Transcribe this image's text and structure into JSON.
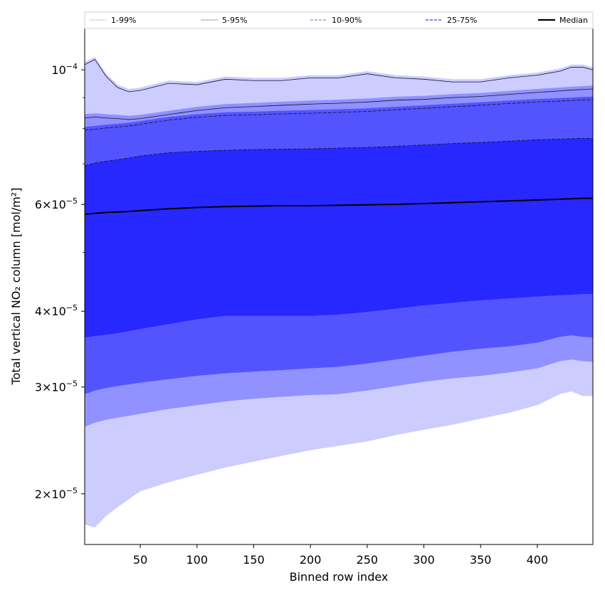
{
  "chart_data": {
    "type": "area",
    "xlabel": "Binned row index",
    "ylabel": "Total vertical NO₂ column [mol/m²]",
    "xlim": [
      1,
      449
    ],
    "ylim": [
      1.65e-05,
      0.000117
    ],
    "yscale": "log",
    "grid": false,
    "legend_placement": "top",
    "x_ticks": [
      {
        "value": 50,
        "label": "50"
      },
      {
        "value": 100,
        "label": "100"
      },
      {
        "value": 150,
        "label": "150"
      },
      {
        "value": 200,
        "label": "200"
      },
      {
        "value": 250,
        "label": "250"
      },
      {
        "value": 300,
        "label": "300"
      },
      {
        "value": 350,
        "label": "350"
      },
      {
        "value": 400,
        "label": "400"
      }
    ],
    "y_ticks": [
      {
        "value": 2e-05,
        "mantissa": "2×10",
        "exponent": "−5"
      },
      {
        "value": 3e-05,
        "mantissa": "3×10",
        "exponent": "−5"
      },
      {
        "value": 4e-05,
        "mantissa": "4×10",
        "exponent": "−5"
      },
      {
        "value": 6e-05,
        "mantissa": "6×10",
        "exponent": "−5"
      },
      {
        "value": 0.0001,
        "mantissa": "10",
        "exponent": "−4"
      }
    ],
    "y_minor_ticks": [
      5e-05,
      7e-05,
      8e-05,
      9e-05
    ],
    "x": [
      1,
      10,
      20,
      30,
      40,
      50,
      75,
      100,
      125,
      150,
      175,
      200,
      225,
      250,
      275,
      300,
      325,
      350,
      375,
      400,
      420,
      430,
      440,
      449
    ],
    "bands": [
      {
        "name": "1-99%",
        "color": "#ccccff",
        "line_color": "#bbbbbb",
        "line_style": "solid",
        "lower": [
          1.78e-05,
          1.76e-05,
          1.84e-05,
          1.9e-05,
          1.96e-05,
          2.02e-05,
          2.09e-05,
          2.15e-05,
          2.21e-05,
          2.26e-05,
          2.31e-05,
          2.36e-05,
          2.4e-05,
          2.44e-05,
          2.5e-05,
          2.55e-05,
          2.6e-05,
          2.66e-05,
          2.72e-05,
          2.8e-05,
          2.92e-05,
          2.95e-05,
          2.9e-05,
          2.9e-05
        ],
        "upper": [
          0.000103,
          0.000105,
          9.85e-05,
          9.45e-05,
          9.3e-05,
          9.35e-05,
          9.6e-05,
          9.55e-05,
          9.75e-05,
          9.7e-05,
          9.7e-05,
          9.8e-05,
          9.8e-05,
          9.95e-05,
          9.8e-05,
          9.75e-05,
          9.65e-05,
          9.65e-05,
          9.8e-05,
          9.9e-05,
          0.0001005,
          0.000102,
          0.000102,
          0.000101
        ]
      },
      {
        "name": "5-95%",
        "color": "#9191ff",
        "line_color": "#8888cc",
        "line_style": "solid",
        "lower": [
          2.58e-05,
          2.62e-05,
          2.65e-05,
          2.67e-05,
          2.69e-05,
          2.71e-05,
          2.76e-05,
          2.8e-05,
          2.84e-05,
          2.87e-05,
          2.89e-05,
          2.91e-05,
          2.92e-05,
          2.96e-05,
          3.01e-05,
          3.06e-05,
          3.1e-05,
          3.13e-05,
          3.17e-05,
          3.22e-05,
          3.31e-05,
          3.33e-05,
          3.31e-05,
          3.3e-05
        ],
        "upper": [
          8.45e-05,
          8.48e-05,
          8.45e-05,
          8.43e-05,
          8.4e-05,
          8.43e-05,
          8.56e-05,
          8.69e-05,
          8.78e-05,
          8.82e-05,
          8.86e-05,
          8.9e-05,
          8.93e-05,
          8.97e-05,
          9.03e-05,
          9.06e-05,
          9.12e-05,
          9.16e-05,
          9.23e-05,
          9.3e-05,
          9.35e-05,
          9.38e-05,
          9.4e-05,
          9.42e-05
        ]
      },
      {
        "name": "10-90%",
        "color": "#5454ff",
        "line_color": "#6a6ae0",
        "line_style": "dashed",
        "lower": [
          2.92e-05,
          2.96e-05,
          2.99e-05,
          3.01e-05,
          3.03e-05,
          3.05e-05,
          3.09e-05,
          3.13e-05,
          3.16e-05,
          3.18e-05,
          3.2e-05,
          3.22e-05,
          3.24e-05,
          3.28e-05,
          3.33e-05,
          3.38e-05,
          3.43e-05,
          3.47e-05,
          3.5e-05,
          3.55e-05,
          3.63e-05,
          3.65e-05,
          3.63e-05,
          3.62e-05
        ],
        "upper": [
          8.05e-05,
          8.08e-05,
          8.12e-05,
          8.15e-05,
          8.18e-05,
          8.23e-05,
          8.36e-05,
          8.45e-05,
          8.51e-05,
          8.53e-05,
          8.56e-05,
          8.58e-05,
          8.61e-05,
          8.64e-05,
          8.69e-05,
          8.74e-05,
          8.79e-05,
          8.84e-05,
          8.9e-05,
          8.95e-05,
          8.98e-05,
          9e-05,
          9.02e-05,
          9.03e-05
        ]
      },
      {
        "name": "25-75%",
        "color": "#2727ff",
        "line_color": "#5a5ae8",
        "line_style": "dashed",
        "lower": [
          3.62e-05,
          3.64e-05,
          3.66e-05,
          3.68e-05,
          3.71e-05,
          3.74e-05,
          3.81e-05,
          3.88e-05,
          3.93e-05,
          3.93e-05,
          3.93e-05,
          3.93e-05,
          3.95e-05,
          3.99e-05,
          4.04e-05,
          4.09e-05,
          4.13e-05,
          4.17e-05,
          4.2e-05,
          4.23e-05,
          4.25e-05,
          4.26e-05,
          4.27e-05,
          4.27e-05
        ]
      }
    ],
    "band_lines": [
      {
        "values": [
          0.000102,
          0.000104,
          9.75e-05,
          9.35e-05,
          9.2e-05,
          9.25e-05,
          9.5e-05,
          9.45e-05,
          9.65e-05,
          9.6e-05,
          9.6e-05,
          9.7e-05,
          9.7e-05,
          9.85e-05,
          9.7e-05,
          9.65e-05,
          9.55e-05,
          9.55e-05,
          9.7e-05,
          9.8e-05,
          9.95e-05,
          0.000101,
          0.000101,
          0.0001
        ]
      },
      {
        "values": [
          8.33e-05,
          8.36e-05,
          8.33e-05,
          8.31e-05,
          8.28e-05,
          8.31e-05,
          8.44e-05,
          8.57e-05,
          8.66e-05,
          8.7e-05,
          8.74e-05,
          8.78e-05,
          8.81e-05,
          8.85e-05,
          8.91e-05,
          8.94e-05,
          9e-05,
          9.04e-05,
          9.11e-05,
          9.18e-05,
          9.23e-05,
          9.26e-05,
          9.28e-05,
          9.3e-05
        ]
      },
      {
        "values": [
          7.95e-05,
          7.98e-05,
          8.02e-05,
          8.05e-05,
          8.08e-05,
          8.13e-05,
          8.26e-05,
          8.35e-05,
          8.41e-05,
          8.43e-05,
          8.46e-05,
          8.48e-05,
          8.51e-05,
          8.54e-05,
          8.59e-05,
          8.64e-05,
          8.69e-05,
          8.74e-05,
          8.8e-05,
          8.85e-05,
          8.88e-05,
          8.9e-05,
          8.92e-05,
          8.93e-05
        ]
      },
      {
        "values": [
          6.95e-05,
          7.02e-05,
          7.07e-05,
          7.11e-05,
          7.16e-05,
          7.21e-05,
          7.3e-05,
          7.34e-05,
          7.37e-05,
          7.39e-05,
          7.4e-05,
          7.41e-05,
          7.43e-05,
          7.45e-05,
          7.48e-05,
          7.52e-05,
          7.56e-05,
          7.59e-05,
          7.63e-05,
          7.67e-05,
          7.69e-05,
          7.7e-05,
          7.71e-05,
          7.71e-05
        ]
      }
    ],
    "median": {
      "name": "Median",
      "color": "#000000",
      "values": [
        5.78e-05,
        5.8e-05,
        5.82e-05,
        5.83e-05,
        5.84e-05,
        5.86e-05,
        5.9e-05,
        5.93e-05,
        5.95e-05,
        5.96e-05,
        5.97e-05,
        5.97e-05,
        5.98e-05,
        5.99e-05,
        6e-05,
        6.02e-05,
        6.04e-05,
        6.06e-05,
        6.08e-05,
        6.1e-05,
        6.12e-05,
        6.13e-05,
        6.14e-05,
        6.14e-05
      ]
    },
    "legend": [
      {
        "label": "1-99%",
        "color": "#cccccc",
        "style": "solid",
        "width": 1
      },
      {
        "label": "5-95%",
        "color": "#9a9ad6",
        "style": "solid",
        "width": 1
      },
      {
        "label": "10-90%",
        "color": "#8a8aee",
        "style": "dashed",
        "width": 1.2
      },
      {
        "label": "25-75%",
        "color": "#5a5ae8",
        "style": "dashed",
        "width": 1.5
      },
      {
        "label": "Median",
        "color": "#000000",
        "style": "solid",
        "width": 2.2
      }
    ]
  }
}
